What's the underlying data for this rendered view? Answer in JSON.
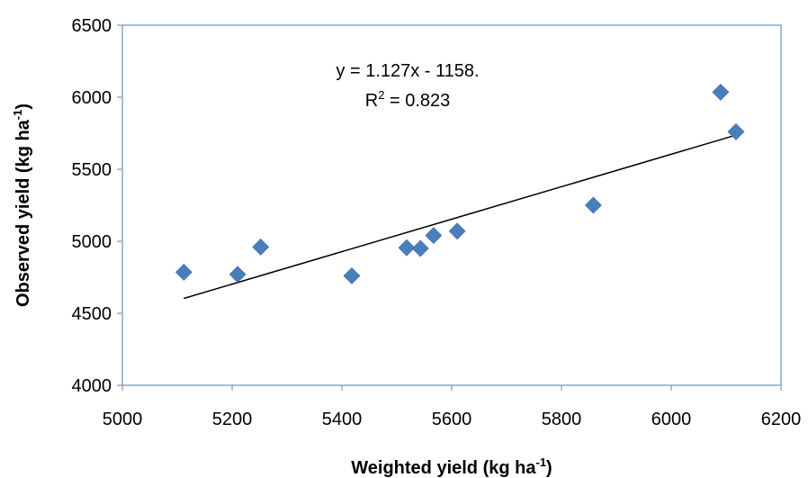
{
  "chart_data": {
    "type": "scatter",
    "title": "",
    "xlabel": {
      "text": "Weighted yield (kg ha",
      "sup": "-1",
      "close": ")"
    },
    "ylabel": {
      "text": "Observed yield (kg ha",
      "sup": "-1",
      "close": ")"
    },
    "xlim": [
      5000,
      6200
    ],
    "ylim": [
      4000,
      6500
    ],
    "x_ticks": [
      "5000",
      "5200",
      "5400",
      "5600",
      "5800",
      "6000",
      "6200"
    ],
    "y_ticks": [
      "4000",
      "4500",
      "5000",
      "5500",
      "6000",
      "6500"
    ],
    "grid": false,
    "series": [
      {
        "marker": "diamond",
        "color": "#4a7ebb",
        "points": [
          {
            "x": 5112,
            "y": 4785
          },
          {
            "x": 5210,
            "y": 4770
          },
          {
            "x": 5252,
            "y": 4960
          },
          {
            "x": 5418,
            "y": 4760
          },
          {
            "x": 5518,
            "y": 4955
          },
          {
            "x": 5543,
            "y": 4950
          },
          {
            "x": 5567,
            "y": 5040
          },
          {
            "x": 5610,
            "y": 5070
          },
          {
            "x": 5858,
            "y": 5250
          },
          {
            "x": 6090,
            "y": 6035
          },
          {
            "x": 6118,
            "y": 5760
          }
        ]
      }
    ],
    "trendline": {
      "slope": 1.127,
      "intercept": -1158,
      "x_range": [
        5112,
        6118
      ],
      "color": "#000000",
      "equation": "y = 1.127x - 1158.",
      "r2_prefix": "R",
      "r2_sup": "2",
      "r2_value": " = 0.823"
    },
    "plot_border_color": "#4a7ebb"
  }
}
